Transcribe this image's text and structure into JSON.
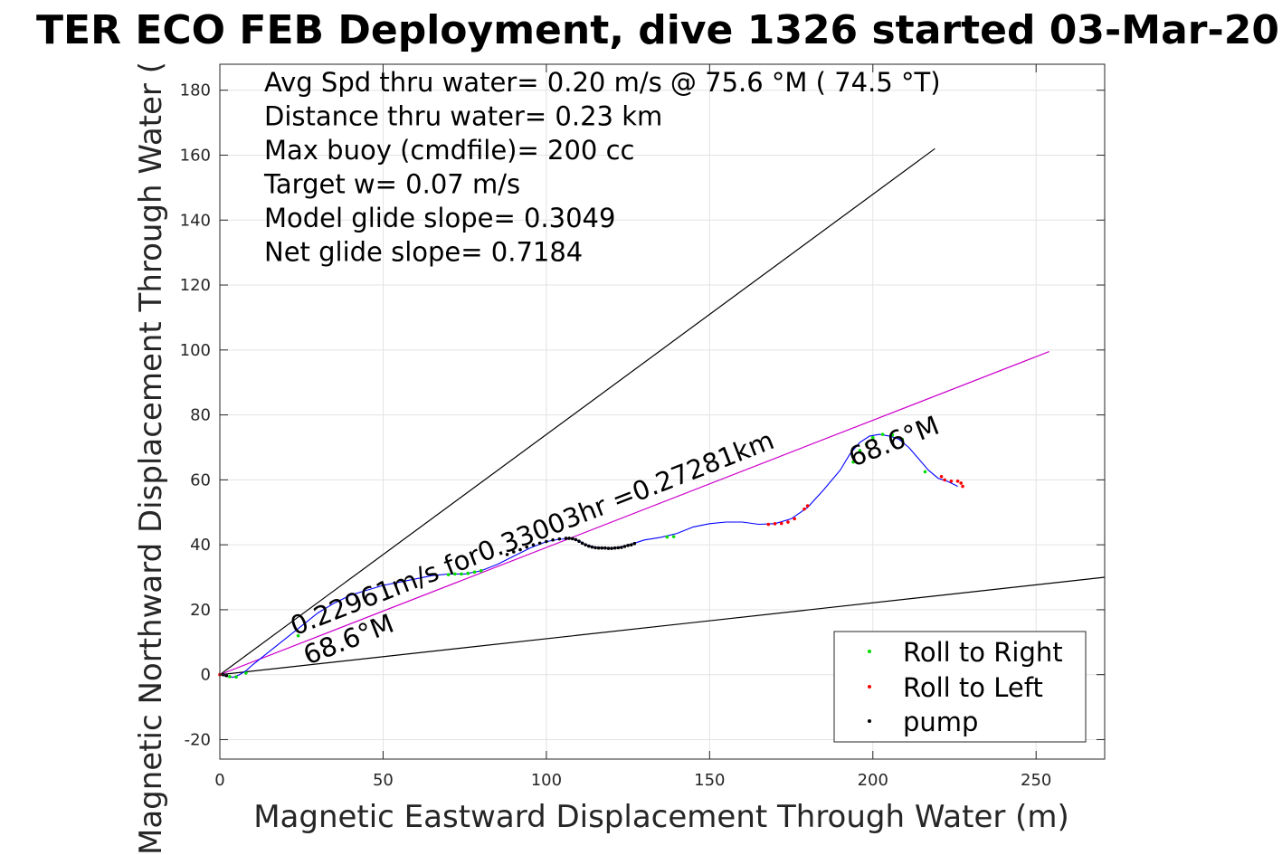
{
  "chart_data": {
    "type": "scatter",
    "title": "TER ECO FEB Deployment, dive 1326 started 03-Mar-20",
    "xlabel": "Magnetic Eastward Displacement Through Water (m)",
    "ylabel": "Magnetic Northward Displacement Through Water (",
    "xlim": [
      0,
      271
    ],
    "ylim": [
      -26,
      188
    ],
    "xticks": [
      0,
      50,
      100,
      150,
      200,
      250
    ],
    "yticks": [
      -20,
      0,
      20,
      40,
      60,
      80,
      100,
      120,
      140,
      160,
      180
    ],
    "grid": true,
    "info_lines": [
      "Avg Spd thru water=  0.20 m/s @  75.6 °M ( 74.5 °T)",
      "Distance thru water=  0.23 km",
      "Max buoy (cmdfile)= 200 cc",
      "Target w= 0.07 m/s",
      "Model glide slope= 0.3049",
      "Net glide slope= 0.7184"
    ],
    "annotations": [
      {
        "text": "0.22961m/s for0.33003hr =0.27281km",
        "x": 23,
        "y": 12,
        "angle_deg": 21.4
      },
      {
        "text": "68.6°M",
        "x": 27,
        "y": 3,
        "angle_deg": 21.4
      },
      {
        "text": "68.6°M",
        "x": 194,
        "y": 64,
        "angle_deg": 21.4
      }
    ],
    "reference_lines": [
      {
        "name": "upper-bound-line",
        "color": "#000000",
        "x": [
          0,
          219
        ],
        "y": [
          0,
          162
        ]
      },
      {
        "name": "lower-bound-line",
        "color": "#000000",
        "x": [
          0,
          271
        ],
        "y": [
          0,
          30
        ]
      },
      {
        "name": "net-heading-line",
        "color": "#cc00cc",
        "x": [
          0,
          254
        ],
        "y": [
          0,
          99.5
        ]
      }
    ],
    "track": {
      "color": "#0000ff",
      "x": [
        0,
        2,
        4,
        6,
        8,
        10,
        15,
        20,
        25,
        30,
        35,
        40,
        45,
        50,
        55,
        60,
        65,
        70,
        75,
        80,
        85,
        90,
        95,
        100,
        104,
        108,
        110,
        112,
        115,
        118,
        121,
        124,
        127,
        130,
        135,
        140,
        145,
        150,
        155,
        160,
        165,
        170,
        175,
        180,
        185,
        190,
        193,
        196,
        199,
        202,
        205,
        208,
        211,
        214,
        217,
        220,
        223,
        226
      ],
      "y": [
        0,
        -0.5,
        -0.8,
        0,
        1.2,
        3,
        7,
        11,
        15,
        19,
        22,
        24.5,
        26,
        27.5,
        28.5,
        29.5,
        30.5,
        31,
        31,
        32,
        34,
        36.5,
        39,
        41,
        41.7,
        42,
        41.2,
        40,
        39.3,
        39,
        39.1,
        39.6,
        40.5,
        41.5,
        42.3,
        43.5,
        45.5,
        46.5,
        47,
        47,
        46.3,
        46.5,
        48,
        51.5,
        57,
        63,
        68,
        71.5,
        73.5,
        74,
        73.5,
        72.5,
        70,
        66.5,
        63,
        60.5,
        59.5,
        58
      ]
    },
    "series": [
      {
        "name": "Roll to Right",
        "color": "#00dd00",
        "x": [
          3,
          5,
          8,
          24,
          70,
          72,
          74,
          76,
          78,
          80,
          137,
          139,
          194,
          196,
          198,
          200,
          203,
          206,
          209,
          216
        ],
        "y": [
          -0.6,
          -0.7,
          0.5,
          12,
          30.8,
          31,
          31,
          31.2,
          31.6,
          32,
          42.4,
          42.5,
          65.5,
          69,
          71,
          73,
          74,
          73.8,
          72.5,
          62.5
        ]
      },
      {
        "name": "Roll to Left",
        "color": "#ff0000",
        "x": [
          0,
          168,
          170,
          172,
          174,
          176,
          179,
          180,
          221,
          222,
          224,
          226,
          227,
          227.5
        ],
        "y": [
          0,
          46.3,
          46.5,
          46.6,
          47,
          48,
          51,
          52,
          61,
          60,
          59.6,
          59.6,
          59,
          58
        ]
      },
      {
        "name": "pump",
        "color": "#000000",
        "x": [
          1,
          2,
          88,
          90,
          92,
          94,
          96,
          98,
          100,
          102,
          104,
          106,
          107,
          108,
          109,
          110,
          111,
          112,
          113,
          114,
          115,
          116,
          117,
          118,
          119,
          120,
          121,
          122,
          123,
          124,
          125,
          126,
          127
        ],
        "y": [
          0,
          -0.3,
          37,
          37.8,
          38.5,
          39.3,
          40,
          40.5,
          41,
          41.5,
          41.8,
          42,
          42,
          41.9,
          41.6,
          41.1,
          40.5,
          40,
          39.6,
          39.3,
          39.1,
          39,
          39,
          39,
          38.9,
          38.9,
          39,
          39.1,
          39.2,
          39.5,
          39.8,
          40,
          40.4
        ]
      }
    ],
    "legend": {
      "placement": "bottom-right",
      "entries": [
        "Roll to Right",
        "Roll to Left",
        "pump"
      ]
    }
  }
}
